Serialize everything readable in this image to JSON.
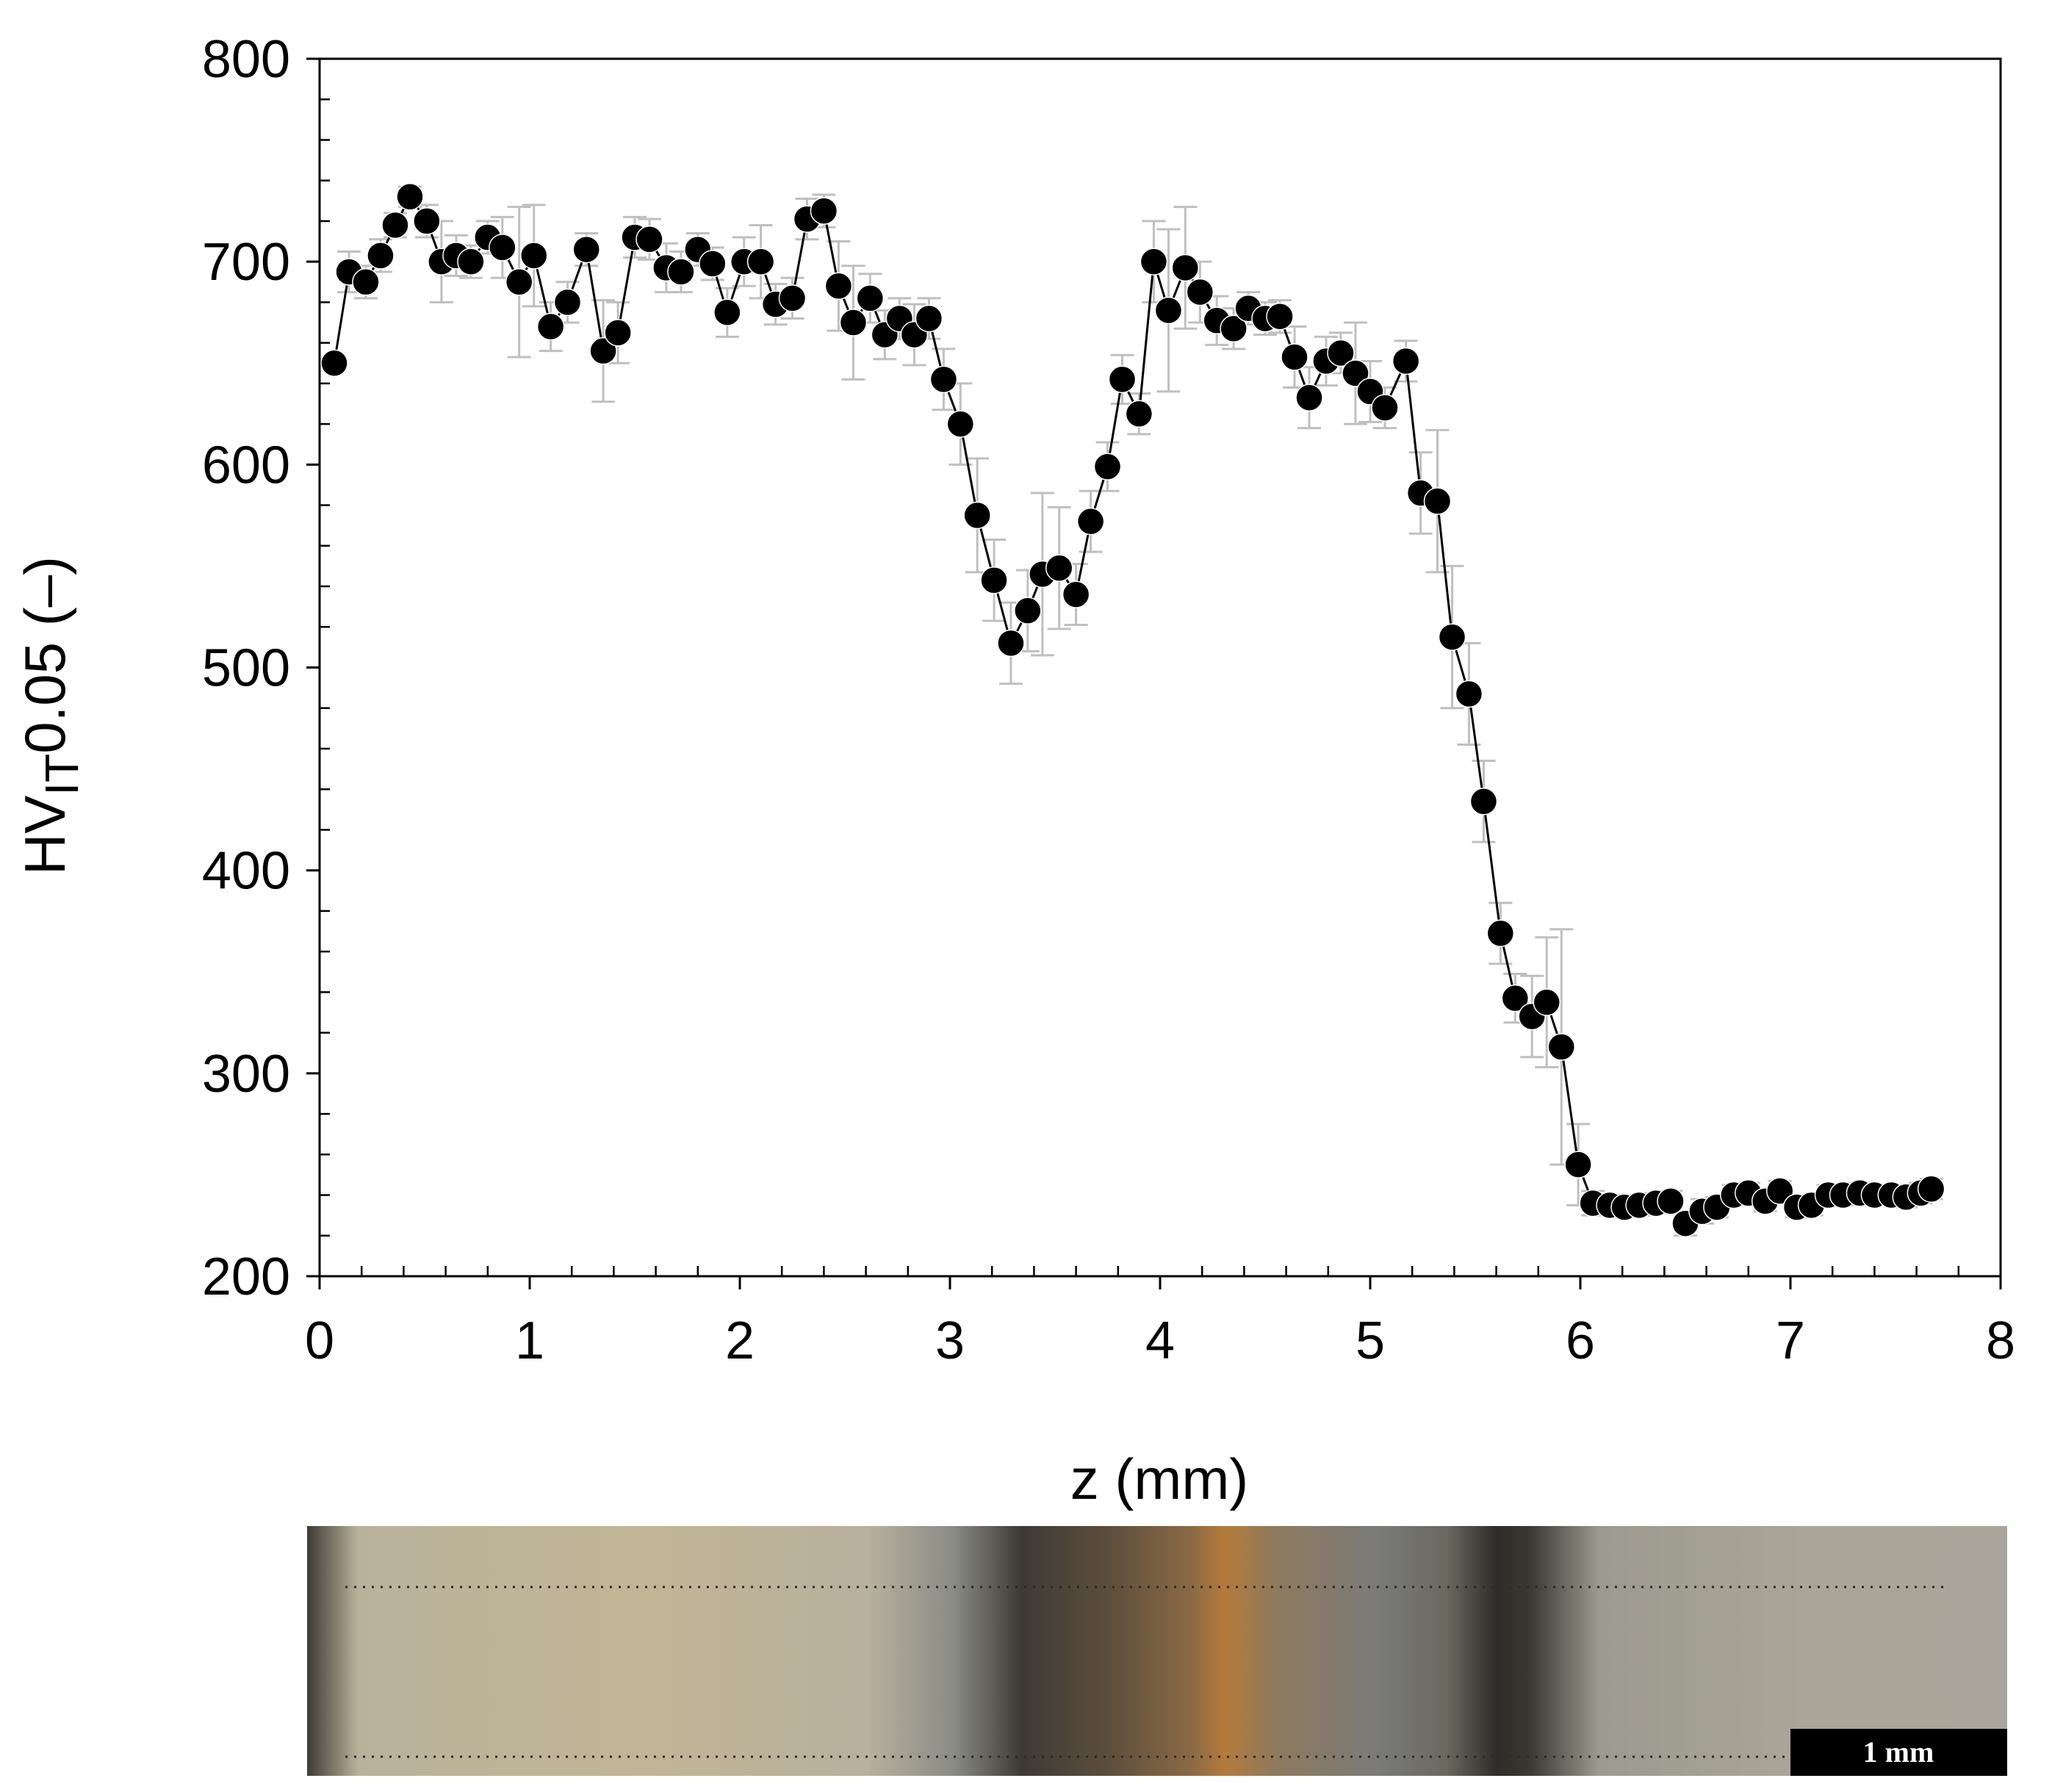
{
  "chart_data": {
    "type": "scatter",
    "title": "",
    "xlabel": "z (mm)",
    "ylabel": {
      "base": "HV",
      "subscript": "IT",
      "suffix": "0.05 (–)"
    },
    "xlim": [
      0,
      8
    ],
    "ylim": [
      200,
      800
    ],
    "xticks": [
      0,
      1,
      2,
      3,
      4,
      5,
      6,
      7,
      8
    ],
    "yticks": [
      200,
      300,
      400,
      500,
      600,
      700,
      800
    ],
    "grid": false,
    "legend": "none",
    "series": [
      {
        "name": "HV_IT 0.05",
        "line": true,
        "marker": "circle",
        "points": [
          {
            "x": 0.07,
            "y": 650,
            "err": 0
          },
          {
            "x": 0.14,
            "y": 695,
            "err": 10
          },
          {
            "x": 0.22,
            "y": 690,
            "err": 8
          },
          {
            "x": 0.29,
            "y": 703,
            "err": 8
          },
          {
            "x": 0.36,
            "y": 718,
            "err": 6
          },
          {
            "x": 0.43,
            "y": 732,
            "err": 5
          },
          {
            "x": 0.51,
            "y": 720,
            "err": 8
          },
          {
            "x": 0.58,
            "y": 700,
            "err": 20
          },
          {
            "x": 0.65,
            "y": 703,
            "err": 10
          },
          {
            "x": 0.72,
            "y": 700,
            "err": 8
          },
          {
            "x": 0.8,
            "y": 712,
            "err": 8
          },
          {
            "x": 0.87,
            "y": 707,
            "err": 15
          },
          {
            "x": 0.95,
            "y": 690,
            "err": 37
          },
          {
            "x": 1.02,
            "y": 703,
            "err": 25
          },
          {
            "x": 1.1,
            "y": 668,
            "err": 12
          },
          {
            "x": 1.18,
            "y": 680,
            "err": 10
          },
          {
            "x": 1.27,
            "y": 706,
            "err": 8
          },
          {
            "x": 1.35,
            "y": 656,
            "err": 25
          },
          {
            "x": 1.42,
            "y": 665,
            "err": 15
          },
          {
            "x": 1.5,
            "y": 712,
            "err": 10
          },
          {
            "x": 1.57,
            "y": 711,
            "err": 10
          },
          {
            "x": 1.65,
            "y": 697,
            "err": 12
          },
          {
            "x": 1.72,
            "y": 695,
            "err": 10
          },
          {
            "x": 1.8,
            "y": 706,
            "err": 8
          },
          {
            "x": 1.87,
            "y": 699,
            "err": 8
          },
          {
            "x": 1.94,
            "y": 675,
            "err": 12
          },
          {
            "x": 2.02,
            "y": 700,
            "err": 12
          },
          {
            "x": 2.1,
            "y": 700,
            "err": 18
          },
          {
            "x": 2.17,
            "y": 679,
            "err": 10
          },
          {
            "x": 2.25,
            "y": 682,
            "err": 10
          },
          {
            "x": 2.32,
            "y": 721,
            "err": 10
          },
          {
            "x": 2.4,
            "y": 725,
            "err": 8
          },
          {
            "x": 2.47,
            "y": 688,
            "err": 22
          },
          {
            "x": 2.54,
            "y": 670,
            "err": 28
          },
          {
            "x": 2.62,
            "y": 682,
            "err": 12
          },
          {
            "x": 2.69,
            "y": 664,
            "err": 12
          },
          {
            "x": 2.76,
            "y": 672,
            "err": 10
          },
          {
            "x": 2.83,
            "y": 664,
            "err": 15
          },
          {
            "x": 2.9,
            "y": 672,
            "err": 10
          },
          {
            "x": 2.97,
            "y": 642,
            "err": 15
          },
          {
            "x": 3.05,
            "y": 620,
            "err": 20
          },
          {
            "x": 3.13,
            "y": 575,
            "err": 28
          },
          {
            "x": 3.21,
            "y": 543,
            "err": 20
          },
          {
            "x": 3.29,
            "y": 512,
            "err": 20
          },
          {
            "x": 3.37,
            "y": 528,
            "err": 20
          },
          {
            "x": 3.44,
            "y": 546,
            "err": 40
          },
          {
            "x": 3.52,
            "y": 549,
            "err": 30
          },
          {
            "x": 3.6,
            "y": 536,
            "err": 15
          },
          {
            "x": 3.67,
            "y": 572,
            "err": 15
          },
          {
            "x": 3.75,
            "y": 599,
            "err": 12
          },
          {
            "x": 3.82,
            "y": 642,
            "err": 12
          },
          {
            "x": 3.9,
            "y": 625,
            "err": 10
          },
          {
            "x": 3.97,
            "y": 700,
            "err": 20
          },
          {
            "x": 4.04,
            "y": 676,
            "err": 40
          },
          {
            "x": 4.12,
            "y": 697,
            "err": 30
          },
          {
            "x": 4.19,
            "y": 685,
            "err": 15
          },
          {
            "x": 4.27,
            "y": 671,
            "err": 12
          },
          {
            "x": 4.35,
            "y": 667,
            "err": 10
          },
          {
            "x": 4.42,
            "y": 677,
            "err": 8
          },
          {
            "x": 4.5,
            "y": 672,
            "err": 8
          },
          {
            "x": 4.57,
            "y": 673,
            "err": 8
          },
          {
            "x": 4.64,
            "y": 653,
            "err": 15
          },
          {
            "x": 4.71,
            "y": 633,
            "err": 15
          },
          {
            "x": 4.79,
            "y": 651,
            "err": 12
          },
          {
            "x": 4.86,
            "y": 655,
            "err": 10
          },
          {
            "x": 4.93,
            "y": 645,
            "err": 25
          },
          {
            "x": 5.0,
            "y": 636,
            "err": 15
          },
          {
            "x": 5.07,
            "y": 628,
            "err": 10
          },
          {
            "x": 5.17,
            "y": 651,
            "err": 10
          },
          {
            "x": 5.24,
            "y": 586,
            "err": 20
          },
          {
            "x": 5.32,
            "y": 582,
            "err": 35
          },
          {
            "x": 5.39,
            "y": 515,
            "err": 35
          },
          {
            "x": 5.47,
            "y": 487,
            "err": 25
          },
          {
            "x": 5.54,
            "y": 434,
            "err": 20
          },
          {
            "x": 5.62,
            "y": 369,
            "err": 15
          },
          {
            "x": 5.69,
            "y": 337,
            "err": 12
          },
          {
            "x": 5.77,
            "y": 328,
            "err": 20
          },
          {
            "x": 5.84,
            "y": 335,
            "err": 32
          },
          {
            "x": 5.91,
            "y": 313,
            "err": 58
          },
          {
            "x": 5.99,
            "y": 255,
            "err": 20
          },
          {
            "x": 6.06,
            "y": 236,
            "err": 6
          },
          {
            "x": 6.14,
            "y": 235,
            "err": 5
          },
          {
            "x": 6.21,
            "y": 234,
            "err": 5
          },
          {
            "x": 6.28,
            "y": 235,
            "err": 5
          },
          {
            "x": 6.36,
            "y": 236,
            "err": 5
          },
          {
            "x": 6.43,
            "y": 237,
            "err": 5
          },
          {
            "x": 6.5,
            "y": 226,
            "err": 6
          },
          {
            "x": 6.58,
            "y": 232,
            "err": 6
          },
          {
            "x": 6.65,
            "y": 234,
            "err": 5
          },
          {
            "x": 6.73,
            "y": 240,
            "err": 5
          },
          {
            "x": 6.8,
            "y": 241,
            "err": 5
          },
          {
            "x": 6.88,
            "y": 237,
            "err": 5
          },
          {
            "x": 6.95,
            "y": 242,
            "err": 5
          },
          {
            "x": 7.03,
            "y": 234,
            "err": 5
          },
          {
            "x": 7.1,
            "y": 235,
            "err": 5
          },
          {
            "x": 7.18,
            "y": 240,
            "err": 5
          },
          {
            "x": 7.25,
            "y": 240,
            "err": 5
          },
          {
            "x": 7.33,
            "y": 241,
            "err": 5
          },
          {
            "x": 7.4,
            "y": 240,
            "err": 5
          },
          {
            "x": 7.48,
            "y": 240,
            "err": 5
          },
          {
            "x": 7.55,
            "y": 239,
            "err": 5
          },
          {
            "x": 7.62,
            "y": 241,
            "err": 5
          },
          {
            "x": 7.67,
            "y": 243,
            "err": 5
          }
        ]
      }
    ]
  },
  "micrograph": {
    "description_name": "weld-cross-section",
    "scale_bar_label": "1 mm",
    "colors": {
      "base": "#b8b199",
      "fusion_dark": "#3a3630",
      "rust": "#b27a3a",
      "haz": "#2e2c28"
    }
  },
  "colors": {
    "marker": "#000000",
    "line": "#000000",
    "errorbar": "#bfbfbf",
    "axis": "#000000"
  }
}
